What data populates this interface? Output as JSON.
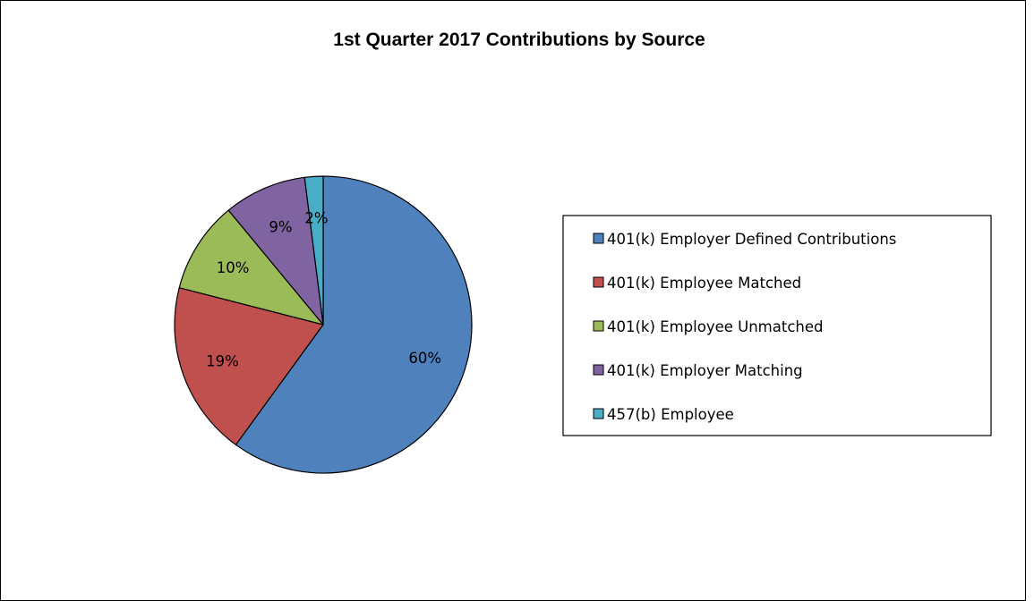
{
  "chart_data": {
    "type": "pie",
    "title": "1st Quarter 2017 Contributions by Source",
    "legend_position": "right",
    "start_angle": "12 o'clock",
    "direction": "clockwise",
    "slices": [
      {
        "label": "401(k) Employer Defined Contributions",
        "value": 60,
        "display": "60%",
        "color": "#4F81BD"
      },
      {
        "label": "401(k) Employee Matched",
        "value": 19,
        "display": "19%",
        "color": "#C0504D"
      },
      {
        "label": "401(k) Employee Unmatched",
        "value": 10,
        "display": "10%",
        "color": "#9BBB59"
      },
      {
        "label": "401(k) Employer Matching",
        "value": 9,
        "display": "9%",
        "color": "#8064A2"
      },
      {
        "label": "457(b) Employee",
        "value": 2,
        "display": "2%",
        "color": "#4BACC6"
      }
    ]
  }
}
